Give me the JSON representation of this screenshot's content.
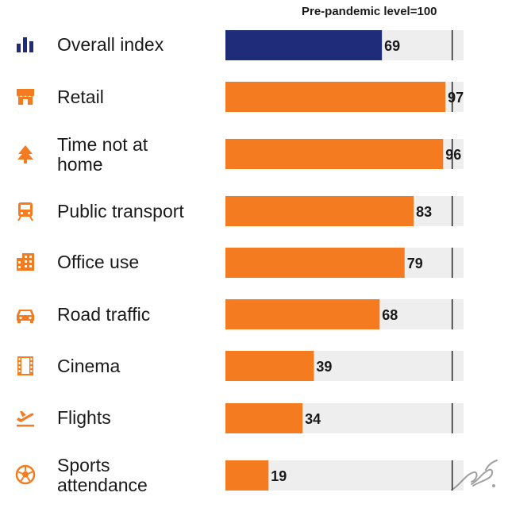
{
  "chart_data": {
    "type": "bar",
    "orientation": "horizontal",
    "note": "Pre-pandemic level=100",
    "reference_value": 100,
    "xlim": [
      0,
      105
    ],
    "categories": [
      "Overall index",
      "Retail",
      "Time not at home",
      "Public transport",
      "Office use",
      "Road traffic",
      "Cinema",
      "Flights",
      "Sports attendance"
    ],
    "values": [
      69,
      97,
      96,
      83,
      79,
      68,
      39,
      34,
      19
    ],
    "highlight_color": "#1f2c7a",
    "bar_color": "#f47b20",
    "track_color": "#eeeeee"
  },
  "rows": [
    {
      "label": "Overall index",
      "icon": "bar-chart-icon"
    },
    {
      "label": "Retail",
      "icon": "storefront-icon"
    },
    {
      "label": "Time not at home",
      "icon": "tree-icon"
    },
    {
      "label": "Public transport",
      "icon": "train-icon"
    },
    {
      "label": "Office use",
      "icon": "office-building-icon"
    },
    {
      "label": "Road traffic",
      "icon": "car-icon"
    },
    {
      "label": "Cinema",
      "icon": "film-strip-icon"
    },
    {
      "label": "Flights",
      "icon": "plane-departure-icon"
    },
    {
      "label": "Sports attendance",
      "icon": "soccer-ball-icon"
    }
  ]
}
